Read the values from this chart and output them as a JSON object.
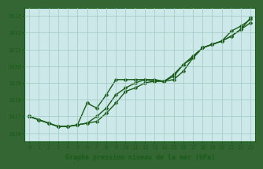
{
  "x": [
    0,
    1,
    2,
    3,
    4,
    5,
    6,
    7,
    8,
    9,
    10,
    11,
    12,
    13,
    14,
    15,
    16,
    17,
    18,
    19,
    20,
    21,
    22,
    23
  ],
  "line1": [
    1027.0,
    1026.8,
    1026.6,
    1026.4,
    1026.4,
    1026.5,
    1027.8,
    1027.5,
    1028.3,
    1029.2,
    1029.2,
    1029.2,
    1029.2,
    1029.1,
    1029.1,
    1029.5,
    1030.1,
    1030.5,
    1031.1,
    1031.3,
    1031.5,
    1032.1,
    1032.4,
    1032.8
  ],
  "line2": [
    1027.0,
    1026.8,
    1026.6,
    1026.4,
    1026.4,
    1026.5,
    1026.6,
    1027.0,
    1027.5,
    1028.3,
    1028.7,
    1029.0,
    1029.2,
    1029.2,
    1029.1,
    1029.2,
    1029.7,
    1030.5,
    1031.1,
    1031.3,
    1031.5,
    1031.8,
    1032.2,
    1032.6
  ],
  "line3": [
    1027.0,
    1026.8,
    1026.6,
    1026.4,
    1026.4,
    1026.5,
    1026.6,
    1026.7,
    1027.2,
    1027.8,
    1028.5,
    1028.7,
    1029.0,
    1029.1,
    1029.1,
    1029.4,
    1030.1,
    1030.6,
    1031.1,
    1031.3,
    1031.5,
    1031.8,
    1032.2,
    1032.9
  ],
  "ylim": [
    1025.5,
    1033.5
  ],
  "yticks": [
    1026,
    1027,
    1028,
    1029,
    1030,
    1031,
    1032,
    1033
  ],
  "xlim": [
    -0.5,
    23.5
  ],
  "xticks": [
    0,
    1,
    2,
    3,
    4,
    5,
    6,
    7,
    8,
    9,
    10,
    11,
    12,
    13,
    14,
    15,
    16,
    17,
    18,
    19,
    20,
    21,
    22,
    23
  ],
  "xlabel": "Graphe pression niveau de la mer (hPa)",
  "line_color": "#1a5c1a",
  "bg_plot": "#cce8e8",
  "bg_fig": "#336633",
  "grid_color": "#a0c8c0",
  "marker": "D",
  "marker_size": 2.5,
  "linewidth": 1.0
}
